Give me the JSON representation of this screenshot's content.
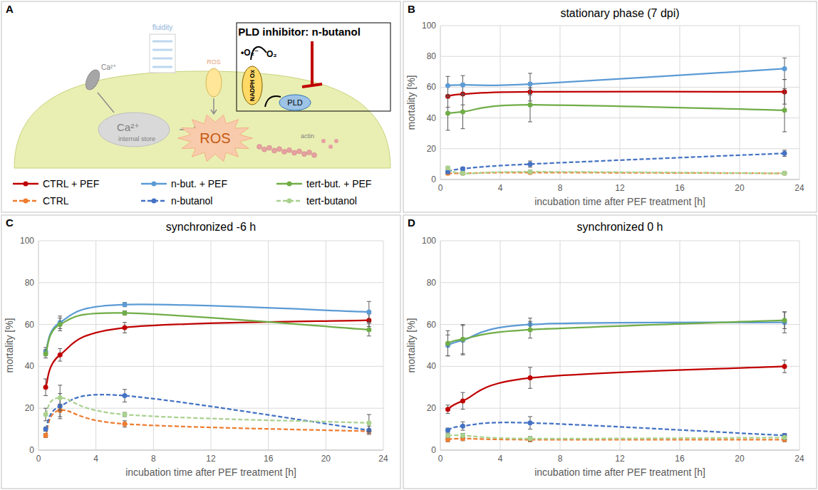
{
  "diagram": {
    "panel": "A",
    "title": "PLD inhibitor: n-butanol",
    "fluidity": "fluidity",
    "ros_channel": "ROS",
    "ros": "ROS",
    "superoxide": "•O₂⁻",
    "oxygen": "O₂",
    "nadph_ox": "NADPH Ox",
    "pld": "PLD",
    "calcium_channel": "Ca²⁺",
    "calcium_store": "Ca²⁺",
    "store": "internal store",
    "actin": "actin"
  },
  "chart_data": [
    {
      "panel": "B",
      "type": "line",
      "title": "stationary phase (7 dpi)",
      "x_label": "incubation time after PEF treatment [h]",
      "y_label": "mortality [%]",
      "x": [
        0.5,
        1.5,
        6,
        23
      ],
      "xlim": [
        0,
        24
      ],
      "xticks": [
        0,
        4,
        8,
        12,
        16,
        20,
        24
      ],
      "ylim": [
        0,
        100
      ],
      "yticks": [
        0,
        20,
        40,
        60,
        80,
        100
      ],
      "grid": true,
      "series": [
        {
          "name": "CTRL + PEF",
          "color": "#c00000",
          "line_style": "solid",
          "marker": "circle",
          "values": [
            54,
            55.5,
            57,
            57
          ],
          "errors": [
            7,
            7,
            6,
            8
          ]
        },
        {
          "name": "n-but. + PEF",
          "color": "#5b9bd5",
          "line_style": "solid",
          "marker": "circle",
          "values": [
            61,
            61.5,
            62,
            72
          ],
          "errors": [
            6,
            6,
            7,
            7
          ]
        },
        {
          "name": "tert-but. + PEF",
          "color": "#70ad47",
          "line_style": "solid",
          "marker": "circle",
          "values": [
            43,
            44,
            48.5,
            45
          ],
          "errors": [
            11,
            11,
            11,
            14
          ]
        },
        {
          "name": "CTRL",
          "color": "#ed7d31",
          "line_style": "dashed",
          "marker": "circle",
          "values": [
            4,
            4,
            4.5,
            4
          ],
          "errors": [
            1,
            1,
            1,
            1
          ]
        },
        {
          "name": "n-butanol",
          "color": "#4472c4",
          "line_style": "dashed",
          "marker": "circle",
          "values": [
            5,
            7,
            10,
            17
          ],
          "errors": [
            1,
            1,
            2,
            2
          ]
        },
        {
          "name": "tert-butanol",
          "color": "#a9d18e",
          "line_style": "dashed",
          "marker": "circle",
          "values": [
            7.5,
            4,
            5,
            4
          ],
          "errors": [
            1,
            1,
            1,
            1
          ]
        }
      ]
    },
    {
      "panel": "C",
      "type": "line",
      "title": "synchronized -6 h",
      "x_label": "incubation time after PEF treatment [h]",
      "y_label": "mortality [%]",
      "x": [
        0.5,
        1.5,
        6,
        23
      ],
      "xlim": [
        0,
        24
      ],
      "xticks": [
        0,
        4,
        8,
        12,
        16,
        20,
        24
      ],
      "ylim": [
        0,
        100
      ],
      "yticks": [
        0,
        20,
        40,
        60,
        80,
        100
      ],
      "grid": true,
      "series": [
        {
          "name": "CTRL + PEF",
          "color": "#c00000",
          "line_style": "solid",
          "marker": "circle",
          "values": [
            30,
            45.5,
            58.5,
            62
          ],
          "errors": [
            4,
            3,
            2.5,
            3
          ]
        },
        {
          "name": "n-but. + PEF",
          "color": "#5b9bd5",
          "line_style": "solid",
          "marker": "circle",
          "values": [
            47,
            61,
            69.5,
            66
          ],
          "errors": [
            2,
            3,
            1,
            5
          ]
        },
        {
          "name": "tert-but. + PEF",
          "color": "#70ad47",
          "line_style": "solid",
          "marker": "circle",
          "values": [
            46,
            60,
            65.5,
            57.5
          ],
          "errors": [
            2,
            3,
            1,
            3
          ]
        },
        {
          "name": "CTRL",
          "color": "#ed7d31",
          "line_style": "dashed",
          "marker": "circle",
          "values": [
            7,
            19,
            12.5,
            9
          ],
          "errors": [
            1,
            3,
            1.5,
            1
          ]
        },
        {
          "name": "n-butanol",
          "color": "#4472c4",
          "line_style": "dashed",
          "marker": "circle",
          "values": [
            10,
            21,
            26,
            9.5
          ],
          "errors": [
            1,
            6,
            3,
            2
          ]
        },
        {
          "name": "tert-butanol",
          "color": "#a9d18e",
          "line_style": "dashed",
          "marker": "circle",
          "values": [
            17,
            25,
            17,
            13
          ],
          "errors": [
            3,
            6,
            1,
            4
          ]
        }
      ]
    },
    {
      "panel": "D",
      "type": "line",
      "title": "synchronized 0 h",
      "x_label": "incubation time after PEF treatment [h]",
      "y_label": "mortality [%]",
      "x": [
        0.5,
        1.5,
        6,
        23
      ],
      "xlim": [
        0,
        24
      ],
      "xticks": [
        0,
        4,
        8,
        12,
        16,
        20,
        24
      ],
      "ylim": [
        0,
        100
      ],
      "yticks": [
        0,
        20,
        40,
        60,
        80,
        100
      ],
      "grid": true,
      "series": [
        {
          "name": "CTRL + PEF",
          "color": "#c00000",
          "line_style": "solid",
          "marker": "circle",
          "values": [
            19.5,
            23.5,
            34.5,
            40
          ],
          "errors": [
            2,
            4,
            5,
            3
          ]
        },
        {
          "name": "n-but. + PEF",
          "color": "#5b9bd5",
          "line_style": "solid",
          "marker": "circle",
          "values": [
            50,
            52.5,
            60,
            61
          ],
          "errors": [
            5,
            7,
            3,
            5
          ]
        },
        {
          "name": "tert-but. + PEF",
          "color": "#70ad47",
          "line_style": "solid",
          "marker": "circle",
          "values": [
            51,
            53,
            57.5,
            62
          ],
          "errors": [
            6,
            7,
            4,
            4
          ]
        },
        {
          "name": "CTRL",
          "color": "#ed7d31",
          "line_style": "dashed",
          "marker": "circle",
          "values": [
            5,
            5.5,
            5,
            5
          ],
          "errors": [
            1,
            1,
            1,
            1
          ]
        },
        {
          "name": "n-butanol",
          "color": "#4472c4",
          "line_style": "dashed",
          "marker": "circle",
          "values": [
            9.5,
            11.5,
            13,
            7
          ],
          "errors": [
            1,
            2,
            3,
            1
          ]
        },
        {
          "name": "tert-butanol",
          "color": "#a9d18e",
          "line_style": "dashed",
          "marker": "circle",
          "values": [
            7,
            7,
            5.5,
            6
          ],
          "errors": [
            1,
            1,
            1,
            1
          ]
        }
      ]
    }
  ]
}
